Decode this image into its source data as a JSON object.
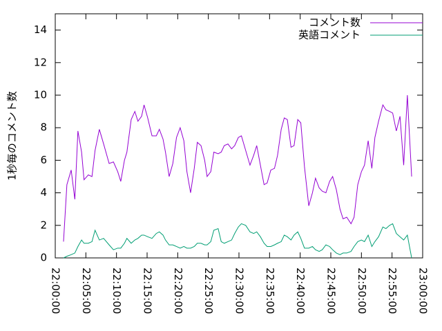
{
  "chart_data": {
    "type": "line",
    "ylabel": "1秒毎のコメント数",
    "x": [
      1.35,
      1.9,
      2.6,
      3.2,
      3.7,
      4.3,
      4.7,
      5.4,
      6.0,
      6.5,
      7.2,
      7.9,
      8.8,
      9.5,
      10.2,
      10.7,
      11.3,
      11.7,
      12.4,
      13.0,
      13.5,
      14.1,
      14.5,
      15.1,
      15.8,
      16.5,
      17.0,
      17.6,
      18.0,
      18.6,
      19.2,
      19.8,
      20.4,
      21.0,
      21.5,
      22.1,
      22.7,
      23.2,
      23.8,
      24.4,
      24.8,
      25.4,
      25.9,
      26.6,
      27.1,
      27.6,
      28.2,
      28.8,
      29.3,
      29.9,
      30.4,
      31.1,
      31.8,
      32.4,
      32.9,
      33.5,
      34.1,
      34.6,
      35.2,
      35.8,
      36.3,
      36.9,
      37.4,
      37.9,
      38.5,
      39.0,
      39.6,
      40.1,
      40.7,
      41.4,
      42.0,
      42.5,
      43.1,
      43.6,
      44.2,
      44.8,
      45.3,
      45.9,
      46.5,
      47.0,
      47.6,
      48.3,
      48.8,
      49.4,
      50.0,
      50.5,
      51.1,
      51.7,
      52.2,
      52.8,
      53.5,
      54.0,
      54.6,
      55.1,
      55.7,
      56.3,
      56.9,
      57.5,
      58.2
    ],
    "series": [
      {
        "name": "コメント数",
        "color": "#9400d3",
        "values": [
          1.0,
          4.5,
          5.4,
          3.6,
          7.8,
          6.5,
          4.8,
          5.1,
          5.0,
          6.6,
          7.9,
          7.0,
          5.8,
          5.9,
          5.3,
          4.7,
          6.0,
          6.5,
          8.5,
          9.0,
          8.4,
          8.7,
          9.4,
          8.6,
          7.5,
          7.5,
          7.9,
          7.3,
          6.5,
          5.0,
          5.8,
          7.4,
          8.0,
          7.2,
          5.3,
          4.0,
          5.5,
          7.1,
          6.9,
          6.0,
          5.0,
          5.3,
          6.5,
          6.4,
          6.5,
          6.9,
          7.0,
          6.7,
          6.9,
          7.4,
          7.5,
          6.6,
          5.7,
          6.3,
          6.9,
          5.7,
          4.5,
          4.6,
          5.4,
          5.5,
          6.3,
          7.9,
          8.6,
          8.5,
          6.8,
          6.9,
          8.5,
          8.3,
          5.6,
          3.2,
          4.0,
          4.9,
          4.3,
          4.1,
          4.0,
          4.7,
          5.0,
          4.2,
          3.0,
          2.4,
          2.5,
          2.1,
          2.5,
          4.5,
          5.3,
          5.7,
          7.2,
          5.5,
          7.4,
          8.4,
          9.4,
          9.1,
          9.0,
          8.9,
          7.8,
          8.7,
          5.7,
          10.0,
          5.0
        ]
      },
      {
        "name": "英語コメント",
        "color": "#009e73",
        "values": [
          0.0,
          0.1,
          0.2,
          0.3,
          0.7,
          1.1,
          0.9,
          0.9,
          1.0,
          1.7,
          1.1,
          1.2,
          0.8,
          0.5,
          0.6,
          0.6,
          0.9,
          1.2,
          0.9,
          1.1,
          1.2,
          1.4,
          1.4,
          1.3,
          1.2,
          1.5,
          1.6,
          1.4,
          1.1,
          0.8,
          0.8,
          0.7,
          0.6,
          0.7,
          0.6,
          0.6,
          0.7,
          0.9,
          0.9,
          0.8,
          0.8,
          1.0,
          1.7,
          1.8,
          1.0,
          0.9,
          1.0,
          1.1,
          1.5,
          1.9,
          2.1,
          2.0,
          1.6,
          1.5,
          1.6,
          1.3,
          0.9,
          0.7,
          0.7,
          0.8,
          0.9,
          1.0,
          1.4,
          1.3,
          1.1,
          1.4,
          1.6,
          1.2,
          0.6,
          0.6,
          0.7,
          0.5,
          0.4,
          0.5,
          0.8,
          0.7,
          0.5,
          0.3,
          0.2,
          0.3,
          0.3,
          0.4,
          0.7,
          1.0,
          1.1,
          1.0,
          1.4,
          0.7,
          1.0,
          1.3,
          1.9,
          1.8,
          2.0,
          2.1,
          1.5,
          1.3,
          1.1,
          1.4,
          0.0
        ]
      }
    ],
    "xlim": [
      0,
      60
    ],
    "xticks": [
      {
        "value": 0,
        "label": "22:00:00"
      },
      {
        "value": 5,
        "label": "22:05:00"
      },
      {
        "value": 10,
        "label": "22:10:00"
      },
      {
        "value": 15,
        "label": "22:15:00"
      },
      {
        "value": 20,
        "label": "22:20:00"
      },
      {
        "value": 25,
        "label": "22:25:00"
      },
      {
        "value": 30,
        "label": "22:30:00"
      },
      {
        "value": 35,
        "label": "22:35:00"
      },
      {
        "value": 40,
        "label": "22:40:00"
      },
      {
        "value": 45,
        "label": "22:45:00"
      },
      {
        "value": 50,
        "label": "22:50:00"
      },
      {
        "value": 55,
        "label": "22:55:00"
      },
      {
        "value": 60,
        "label": "23:00:00"
      }
    ],
    "ylim": [
      0,
      15
    ],
    "yticks": [
      0,
      2,
      4,
      6,
      8,
      10,
      12,
      14
    ],
    "legend": "top-right"
  }
}
